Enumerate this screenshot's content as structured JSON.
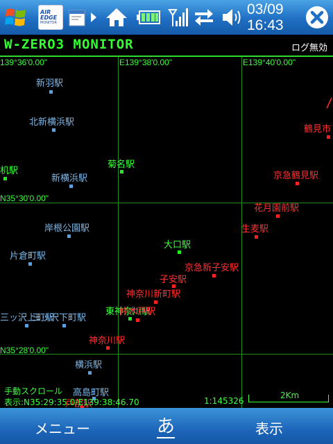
{
  "taskbar": {
    "start_icon": "windows-flag-icon",
    "app1": {
      "logo_line1": "AIR EDGE",
      "logo_line2": "MONITOR"
    },
    "clock": {
      "date": "03/09",
      "time": "16:43"
    },
    "icons": [
      "windows-flag-icon",
      "app-window-icon",
      "chevron-right-icon",
      "home-icon",
      "battery-icon",
      "signal-icon",
      "sync-arrows-icon",
      "volume-icon",
      "close-icon"
    ]
  },
  "header": {
    "title": "W-ZERO3 MONITOR",
    "log_status": "ログ無効"
  },
  "map": {
    "coords": {
      "lon1": "139°36'0.00\"",
      "lon2": "E139°38'0.00\"",
      "lon3": "E139°40'0.00\"",
      "lat1": "N35°30'0.00\"",
      "lat2": "N35°28'0.00\""
    },
    "stations": [
      {
        "name": "新羽駅",
        "color": "blue"
      },
      {
        "name": "北新横浜駅",
        "color": "blue"
      },
      {
        "name": "菊名駅",
        "color": "green"
      },
      {
        "name": "机駅",
        "color": "green"
      },
      {
        "name": "新横浜駅",
        "color": "blue"
      },
      {
        "name": "岸根公園駅",
        "color": "blue"
      },
      {
        "name": "片倉町駅",
        "color": "blue"
      },
      {
        "name": "大口駅",
        "color": "green"
      },
      {
        "name": "京急新子安駅",
        "color": "red"
      },
      {
        "name": "子安駅",
        "color": "red"
      },
      {
        "name": "神奈川新町駅",
        "color": "red"
      },
      {
        "name": "東神奈川駅",
        "color": "green"
      },
      {
        "name": "仲木戸駅",
        "color": "red"
      },
      {
        "name": "三ッ沢上町駅",
        "color": "blue"
      },
      {
        "name": "三ッ沢下町駅",
        "color": "blue"
      },
      {
        "name": "神奈川駅",
        "color": "red"
      },
      {
        "name": "横浜駅",
        "color": "blue"
      },
      {
        "name": "高島町駅",
        "color": "blue"
      },
      {
        "name": "戸部駅",
        "color": "red"
      },
      {
        "name": "鶴見市",
        "color": "red"
      },
      {
        "name": "京急鶴見駅",
        "color": "red"
      },
      {
        "name": "花月園前駅",
        "color": "red"
      },
      {
        "name": "生麦駅",
        "color": "red"
      }
    ],
    "mode_text": "手動スクロール",
    "display_text": "表示:N35:29:35.0/E139:38:46.70",
    "scale_text": "1:145326",
    "scalebar_label": "2Km"
  },
  "softkeys": {
    "left": "メニュー",
    "ime": "あ",
    "right": "表示"
  }
}
